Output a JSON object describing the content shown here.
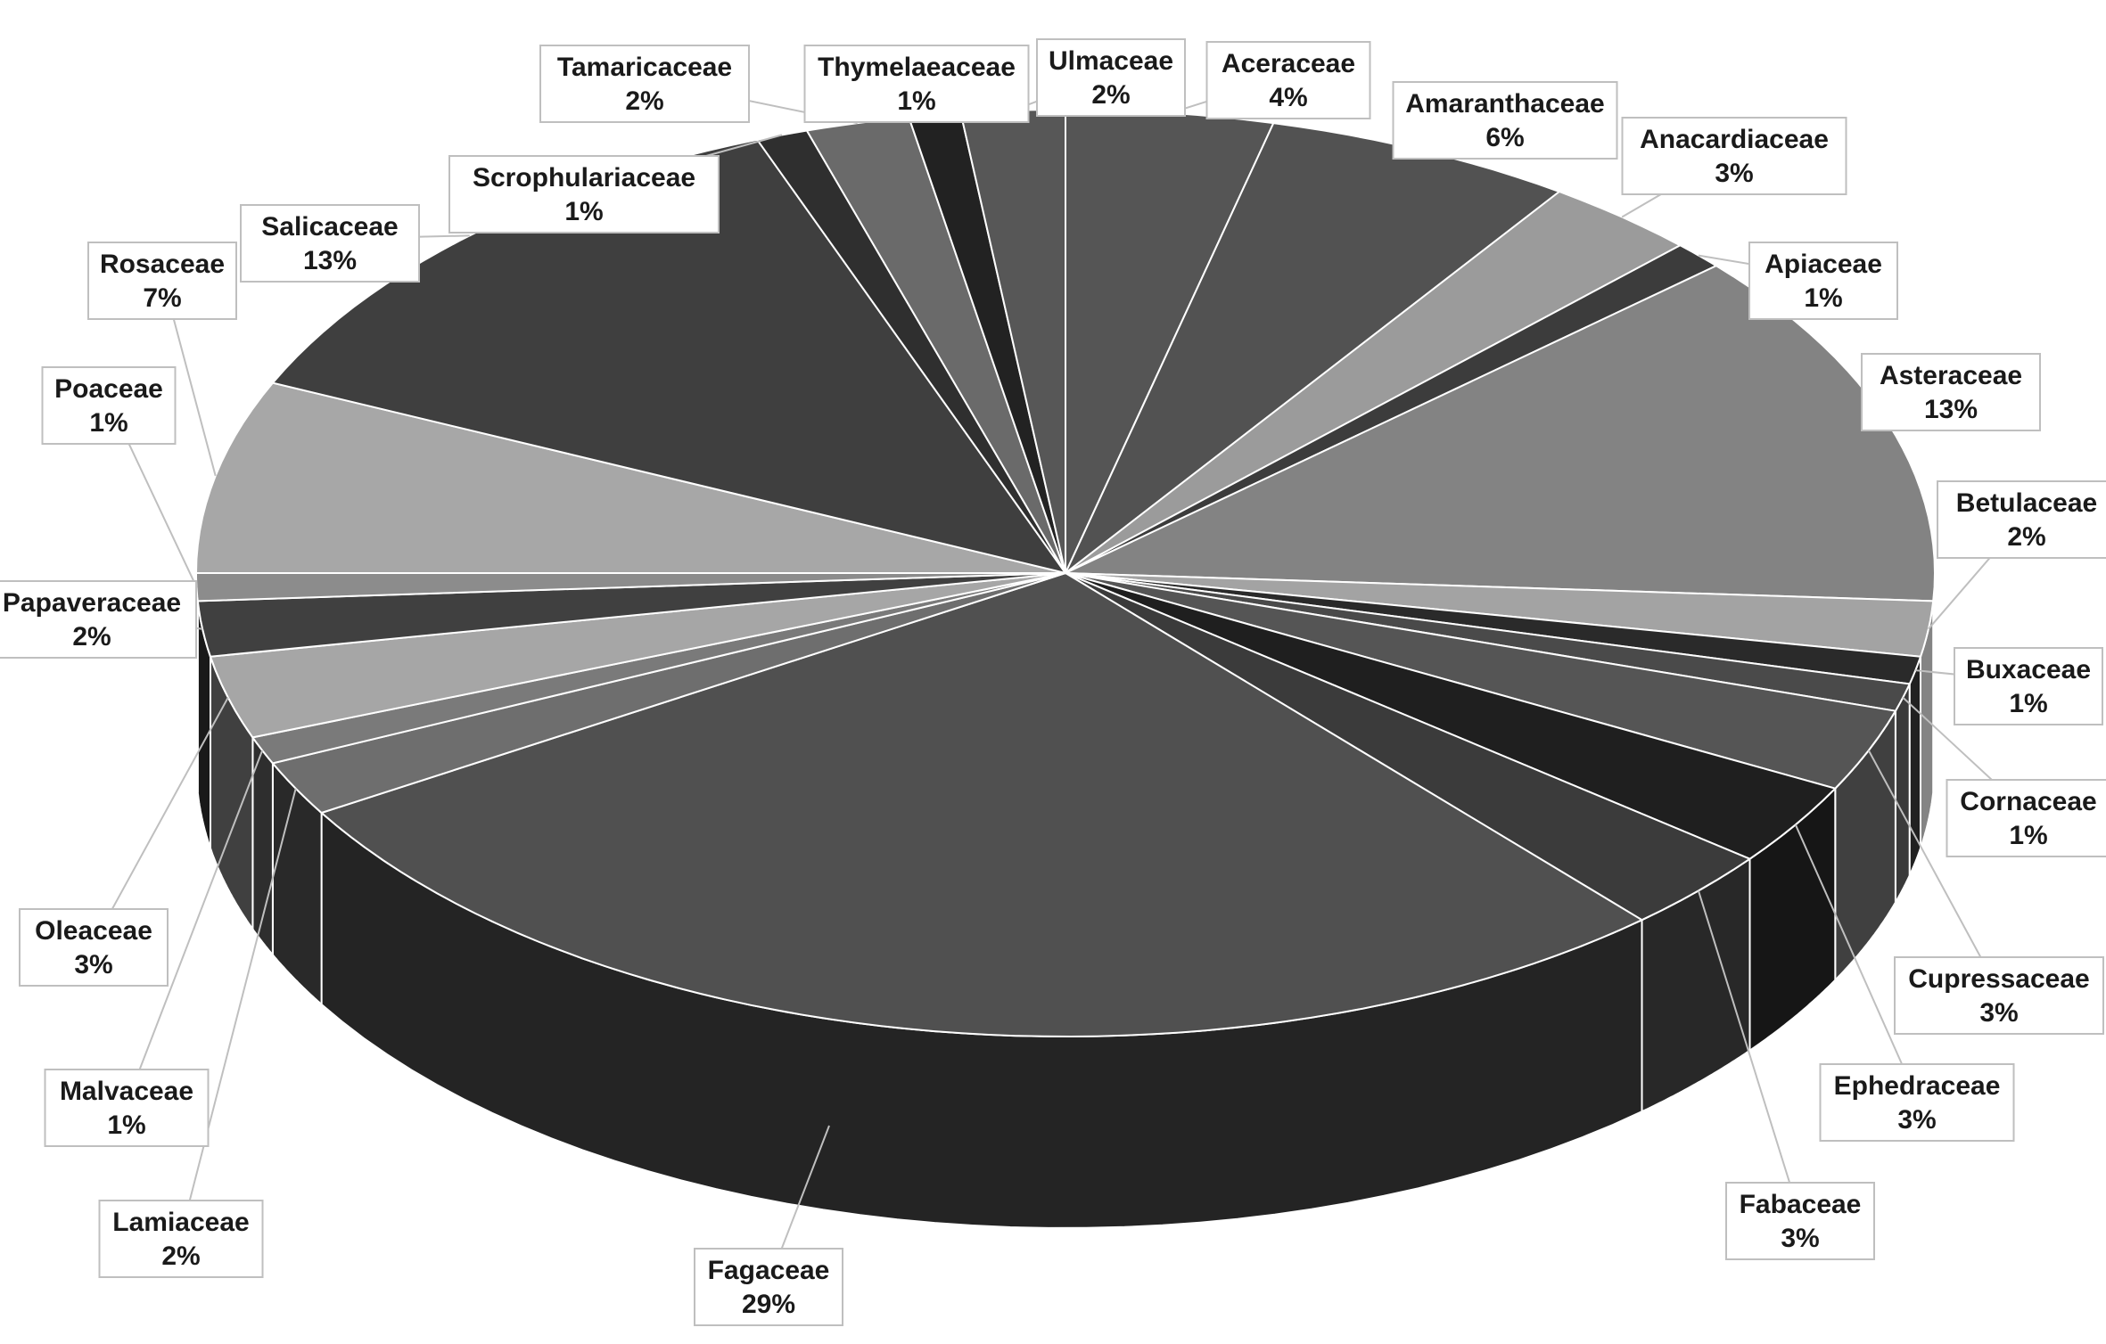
{
  "chart_data": {
    "type": "pie",
    "title": "",
    "style": "3d-exploded-labels",
    "slices": [
      {
        "label": "Aceraceae",
        "value": 4,
        "pct": "4%",
        "color": "#555555"
      },
      {
        "label": "Amaranthaceae",
        "value": 6,
        "pct": "6%",
        "color": "#525252"
      },
      {
        "label": "Anacardiaceae",
        "value": 3,
        "pct": "3%",
        "color": "#9b9b9b"
      },
      {
        "label": "Apiaceae",
        "value": 1,
        "pct": "1%",
        "color": "#3c3c3c"
      },
      {
        "label": "Asteraceae",
        "value": 13,
        "pct": "13%",
        "color": "#838383"
      },
      {
        "label": "Betulaceae",
        "value": 2,
        "pct": "2%",
        "color": "#a3a3a3"
      },
      {
        "label": "Buxaceae",
        "value": 1,
        "pct": "1%",
        "color": "#2a2a2a"
      },
      {
        "label": "Cornaceae",
        "value": 1,
        "pct": "1%",
        "color": "#4a4a4a"
      },
      {
        "label": "Cupressaceae",
        "value": 3,
        "pct": "3%",
        "color": "#555555"
      },
      {
        "label": "Ephedraceae",
        "value": 3,
        "pct": "3%",
        "color": "#1f1f1f"
      },
      {
        "label": "Fabaceae",
        "value": 3,
        "pct": "3%",
        "color": "#3b3b3b"
      },
      {
        "label": "Fagaceae",
        "value": 29,
        "pct": "29%",
        "color": "#505050"
      },
      {
        "label": "Lamiaceae",
        "value": 2,
        "pct": "2%",
        "color": "#6e6e6e"
      },
      {
        "label": "Malvaceae",
        "value": 1,
        "pct": "1%",
        "color": "#7a7a7a"
      },
      {
        "label": "Oleaceae",
        "value": 3,
        "pct": "3%",
        "color": "#a6a6a6"
      },
      {
        "label": "Papaveraceae",
        "value": 2,
        "pct": "2%",
        "color": "#404040"
      },
      {
        "label": "Poaceae",
        "value": 1,
        "pct": "1%",
        "color": "#8c8c8c"
      },
      {
        "label": "Rosaceae",
        "value": 7,
        "pct": "7%",
        "color": "#a7a7a7"
      },
      {
        "label": "Salicaceae",
        "value": 13,
        "pct": "13%",
        "color": "#3f3f3f"
      },
      {
        "label": "Scrophulariaceae",
        "value": 1,
        "pct": "1%",
        "color": "#2f2f2f"
      },
      {
        "label": "Tamaricaceae",
        "value": 2,
        "pct": "2%",
        "color": "#6a6a6a"
      },
      {
        "label": "Thymelaeaceae",
        "value": 1,
        "pct": "1%",
        "color": "#222222"
      },
      {
        "label": "Ulmaceae",
        "value": 2,
        "pct": "2%",
        "color": "#575757"
      }
    ]
  }
}
